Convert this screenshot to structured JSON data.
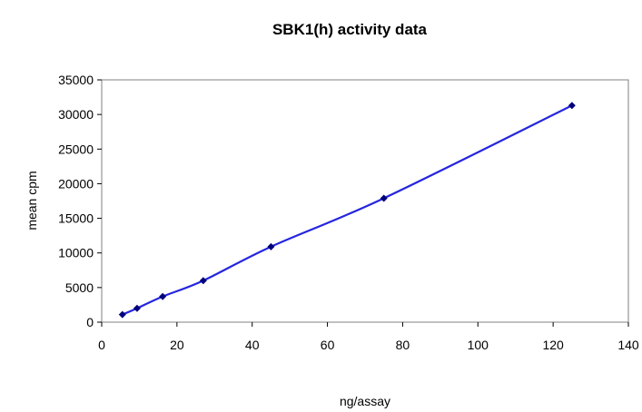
{
  "chart_data": {
    "type": "line",
    "title": "SBK1(h) activity data",
    "xlabel": "ng/assay",
    "ylabel": "mean cpm",
    "xlim": [
      0,
      140
    ],
    "ylim": [
      0,
      35000
    ],
    "x_ticks": [
      0,
      20,
      40,
      60,
      80,
      100,
      120,
      140
    ],
    "y_ticks": [
      0,
      5000,
      10000,
      15000,
      20000,
      25000,
      30000,
      35000
    ],
    "grid": false,
    "legend": "none",
    "series": [
      {
        "x": [
          5.5,
          9.4,
          16.2,
          27.0,
          45.0,
          75.0,
          125.0
        ],
        "y": [
          1100,
          2000,
          3700,
          6000,
          10900,
          17900,
          31300
        ],
        "color": "#2525e0",
        "marker_color": "#00007a"
      }
    ]
  }
}
